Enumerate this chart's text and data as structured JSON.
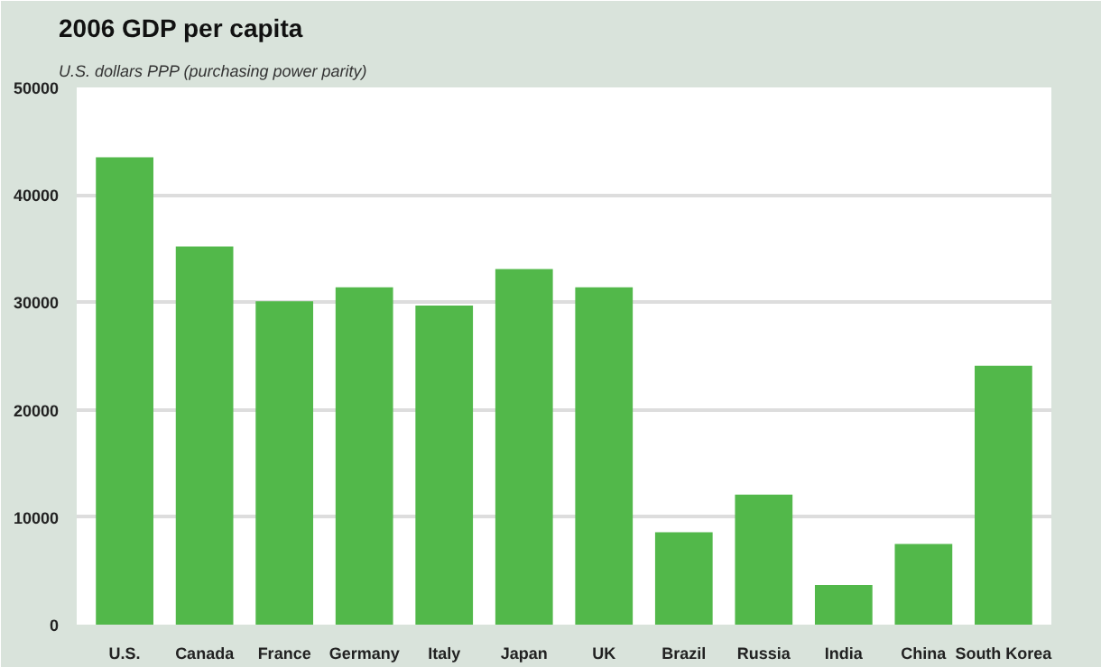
{
  "chart_data": {
    "type": "bar",
    "title": "2006 GDP per capita",
    "subtitle": "U.S. dollars PPP (purchasing power parity)",
    "categories": [
      "U.S.",
      "Canada",
      "France",
      "Germany",
      "Italy",
      "Japan",
      "UK",
      "Brazil",
      "Russia",
      "India",
      "China",
      "South Korea"
    ],
    "values": [
      43500,
      35200,
      30100,
      31400,
      29700,
      33100,
      31400,
      8600,
      12100,
      3700,
      7500,
      24100
    ],
    "color": "#52b84a",
    "ylim": [
      0,
      50000
    ],
    "yticks": [
      0,
      10000,
      20000,
      30000,
      40000,
      50000
    ],
    "grid": "y"
  }
}
